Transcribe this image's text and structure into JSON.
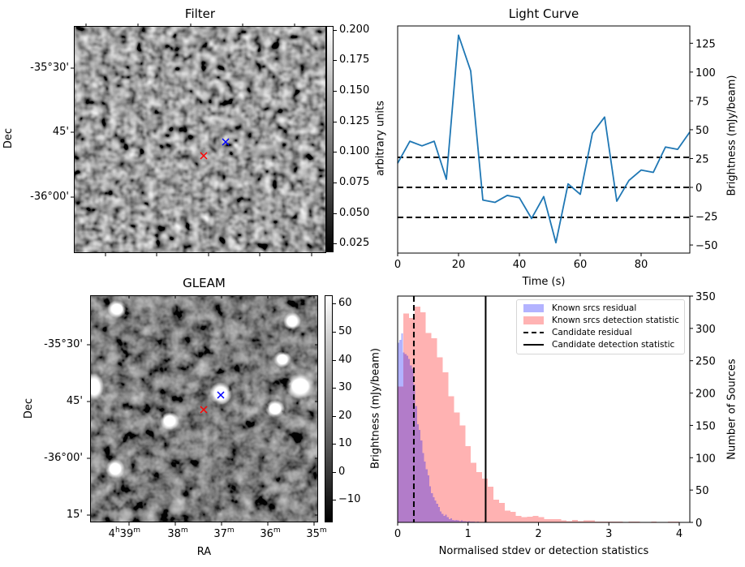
{
  "filter_panel": {
    "title": "Filter",
    "ylabel": "Dec",
    "yticks": [
      "-35°30'",
      "45'",
      "-36°00'"
    ],
    "colorbar": {
      "label": "arbitrary units",
      "ticks": [
        "0.200",
        "0.175",
        "0.150",
        "0.125",
        "0.100",
        "0.075",
        "0.050",
        "0.025"
      ],
      "range": [
        0.018,
        0.203
      ],
      "colormap": "gray"
    },
    "markers": [
      {
        "name": "candidate-position",
        "color": "#ff0000",
        "symbol": "x"
      },
      {
        "name": "known-source-position",
        "color": "#0000ff",
        "symbol": "x"
      }
    ]
  },
  "gleam_panel": {
    "title": "GLEAM",
    "xlabel": "RA",
    "ylabel": "Dec",
    "xticks": [
      {
        "main": "4",
        "sup1": "h",
        "mid": "39",
        "sup2": "m"
      },
      {
        "main": "",
        "sup1": "",
        "mid": "38",
        "sup2": "m"
      },
      {
        "main": "",
        "sup1": "",
        "mid": "37",
        "sup2": "m"
      },
      {
        "main": "",
        "sup1": "",
        "mid": "36",
        "sup2": "m"
      },
      {
        "main": "",
        "sup1": "",
        "mid": "35",
        "sup2": "m"
      }
    ],
    "yticks": [
      "-35°30'",
      "45'",
      "-36°00'",
      "15'"
    ],
    "colorbar": {
      "label": "Brightness (mJy/beam)",
      "ticks": [
        "60",
        "50",
        "40",
        "30",
        "20",
        "10",
        "0",
        "−10"
      ],
      "range": [
        -18,
        63
      ],
      "colormap": "gray"
    },
    "markers": [
      {
        "name": "candidate-position",
        "color": "#ff0000",
        "symbol": "x"
      },
      {
        "name": "known-source-position",
        "color": "#0000ff",
        "symbol": "x"
      }
    ]
  },
  "chart_data": [
    {
      "type": "line",
      "title": "Light Curve",
      "xlabel": "Time (s)",
      "ylabel": "Brightness (mJy/beam)",
      "xlim": [
        0,
        96
      ],
      "ylim": [
        -57,
        140
      ],
      "xticks": [
        0,
        20,
        40,
        60,
        80
      ],
      "yticks": [
        125,
        100,
        75,
        50,
        25,
        0,
        -25,
        -50
      ],
      "ytick_labels": [
        "125",
        "100",
        "75",
        "50",
        "25",
        "0",
        "−25",
        "−50"
      ],
      "yaxis_side": "right",
      "grid": false,
      "series": [
        {
          "name": "light-curve",
          "color": "#1f77b4",
          "x": [
            0,
            4,
            8,
            12,
            16,
            20,
            24,
            28,
            32,
            36,
            40,
            44,
            48,
            52,
            56,
            60,
            64,
            68,
            72,
            76,
            80,
            84,
            88,
            92,
            96
          ],
          "y": [
            21,
            40,
            36,
            40,
            7,
            132,
            101,
            -11,
            -13,
            -7,
            -9,
            -27,
            -8,
            -48,
            3,
            -6,
            47,
            61,
            -12,
            6,
            15,
            13,
            35,
            33,
            48
          ]
        }
      ],
      "hlines": [
        {
          "y": 26,
          "style": "dashed",
          "color": "#000000"
        },
        {
          "y": 0,
          "style": "dashed",
          "color": "#000000"
        },
        {
          "y": -26,
          "style": "dashed",
          "color": "#000000"
        }
      ]
    },
    {
      "type": "histogram",
      "title": "",
      "xlabel": "Normalised stdev or detection statistics",
      "ylabel": "Number of Sources",
      "xlim": [
        0,
        4.15
      ],
      "ylim": [
        0,
        350
      ],
      "xticks": [
        0,
        1,
        2,
        3,
        4
      ],
      "yticks": [
        0,
        50,
        100,
        150,
        200,
        250,
        300,
        350
      ],
      "yaxis_side": "right",
      "grid": false,
      "legend_position": "top-right",
      "series": [
        {
          "name": "Known srcs residual",
          "color": "#0000ff",
          "alpha": 0.3,
          "bin_width": 0.025,
          "bin_start": 0,
          "values": [
            278,
            282,
            292,
            263,
            260,
            258,
            253,
            243,
            238,
            213,
            180,
            152,
            143,
            127,
            107,
            94,
            82,
            73,
            56,
            45,
            39,
            34,
            29,
            24,
            17,
            13,
            10,
            12,
            8,
            5,
            6,
            4,
            3,
            4,
            3,
            2,
            3,
            2,
            2,
            1,
            2,
            1,
            1,
            1,
            0,
            1,
            0,
            0,
            0,
            1
          ]
        },
        {
          "name": "Known srcs detection statistic",
          "color": "#ff0000",
          "alpha": 0.3,
          "bin_width": 0.08,
          "bin_start": 0,
          "values": [
            210,
            323,
            316,
            334,
            325,
            293,
            285,
            255,
            232,
            195,
            170,
            150,
            118,
            92,
            78,
            68,
            55,
            35,
            30,
            18,
            16,
            10,
            8,
            9,
            10,
            8,
            5,
            5,
            5,
            3,
            2,
            4,
            2,
            3,
            3,
            1,
            1,
            1,
            1,
            1,
            0,
            1,
            1,
            0,
            0,
            1,
            0,
            0,
            1,
            1,
            0
          ]
        }
      ],
      "vlines": [
        {
          "name": "Candidate residual",
          "x": 0.23,
          "style": "dashed",
          "color": "#000000"
        },
        {
          "name": "Candidate detection statistic",
          "x": 1.25,
          "style": "solid",
          "color": "#000000"
        }
      ],
      "legend": [
        {
          "label": "Known srcs residual",
          "kind": "patch",
          "color": "#b3b3ff"
        },
        {
          "label": "Known srcs detection statistic",
          "kind": "patch",
          "color": "#ffb3b3"
        },
        {
          "label": "Candidate residual",
          "kind": "dashed",
          "color": "#000000"
        },
        {
          "label": "Candidate detection statistic",
          "kind": "solid",
          "color": "#000000"
        }
      ]
    }
  ]
}
